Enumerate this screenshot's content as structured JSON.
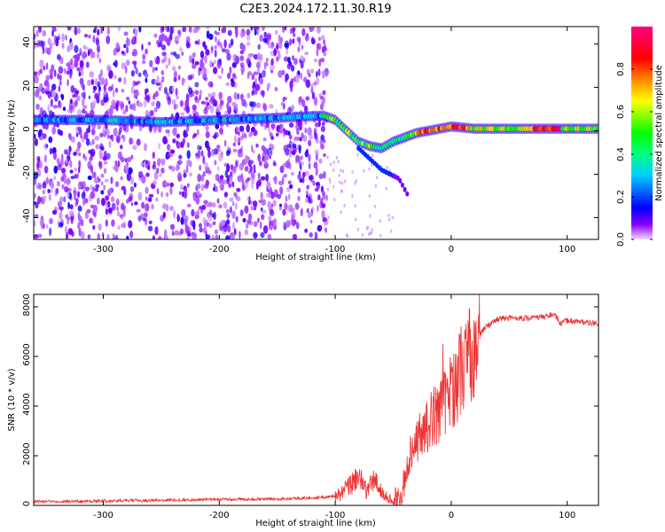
{
  "title": "C2E3.2024.172.11.30.R19",
  "chart_data": [
    {
      "type": "heatmap",
      "title": "C2E3.2024.172.11.30.R19",
      "xlabel": "Height of straight line (km)",
      "ylabel": "Frequency (Hz)",
      "xlim": [
        -360,
        127
      ],
      "ylim": [
        -50,
        48
      ],
      "xticks": [
        -300,
        -200,
        -100,
        0,
        100
      ],
      "yticks": [
        -40,
        -20,
        0,
        20,
        40
      ],
      "colorbar": {
        "label": "Normalized spectral amplitude",
        "range": [
          0,
          1
        ],
        "ticks": [
          0.0,
          0.2,
          0.4,
          0.6,
          0.8
        ],
        "colormap": [
          "#f0d8fc",
          "#8800ff",
          "#0000ff",
          "#00ccff",
          "#00ff80",
          "#00ff00",
          "#ffff00",
          "#ff8800",
          "#ff0000",
          "#ff0080"
        ]
      },
      "ridge": {
        "description_points": [
          {
            "x": -360,
            "y": 5
          },
          {
            "x": -300,
            "y": 5
          },
          {
            "x": -250,
            "y": 4
          },
          {
            "x": -200,
            "y": 5
          },
          {
            "x": -150,
            "y": 6
          },
          {
            "x": -110,
            "y": 7
          },
          {
            "x": -100,
            "y": 5
          },
          {
            "x": -90,
            "y": 0
          },
          {
            "x": -80,
            "y": -5
          },
          {
            "x": -70,
            "y": -7
          },
          {
            "x": -60,
            "y": -8
          },
          {
            "x": -50,
            "y": -5
          },
          {
            "x": -40,
            "y": -3
          },
          {
            "x": -30,
            "y": -1
          },
          {
            "x": -20,
            "y": 0
          },
          {
            "x": 0,
            "y": 2
          },
          {
            "x": 20,
            "y": 1
          },
          {
            "x": 50,
            "y": 1
          },
          {
            "x": 100,
            "y": 1
          },
          {
            "x": 127,
            "y": 1
          }
        ],
        "secondary_branch": [
          {
            "x": -80,
            "y": -8
          },
          {
            "x": -60,
            "y": -18
          },
          {
            "x": -45,
            "y": -22
          },
          {
            "x": -37,
            "y": -30
          }
        ]
      }
    },
    {
      "type": "line",
      "xlabel": "Height of straight line (km)",
      "ylabel": "SNR (10 * v/v)",
      "xlim": [
        -360,
        127
      ],
      "ylim": [
        0,
        8500
      ],
      "xticks": [
        -300,
        -200,
        -100,
        0,
        100
      ],
      "yticks": [
        0,
        2000,
        4000,
        6000,
        8000
      ],
      "color": "#ee3333",
      "series": [
        {
          "x": [
            -360,
            -340,
            -320,
            -300,
            -280,
            -260,
            -240,
            -220,
            -200,
            -180,
            -160,
            -140,
            -120,
            -110,
            -100,
            -95,
            -90,
            -85,
            -80,
            -76,
            -72,
            -68,
            -64,
            -60,
            -55,
            -50,
            -45,
            -40,
            -35,
            -30,
            -25,
            -20,
            -15,
            -10,
            -5,
            0,
            5,
            10,
            15,
            20,
            25,
            30,
            40,
            50,
            60,
            70,
            80,
            88,
            92,
            94,
            100,
            110,
            120,
            127
          ],
          "values": [
            150,
            170,
            160,
            180,
            190,
            200,
            220,
            230,
            240,
            250,
            260,
            280,
            300,
            330,
            380,
            450,
            700,
            900,
            1300,
            700,
            600,
            1000,
            900,
            500,
            300,
            200,
            300,
            1000,
            2200,
            2600,
            3000,
            3200,
            3600,
            3900,
            4200,
            4600,
            5100,
            5600,
            6000,
            6500,
            6900,
            7200,
            7500,
            7550,
            7550,
            7550,
            7600,
            7700,
            7500,
            7300,
            7450,
            7400,
            7350,
            7300
          ]
        }
      ]
    }
  ]
}
